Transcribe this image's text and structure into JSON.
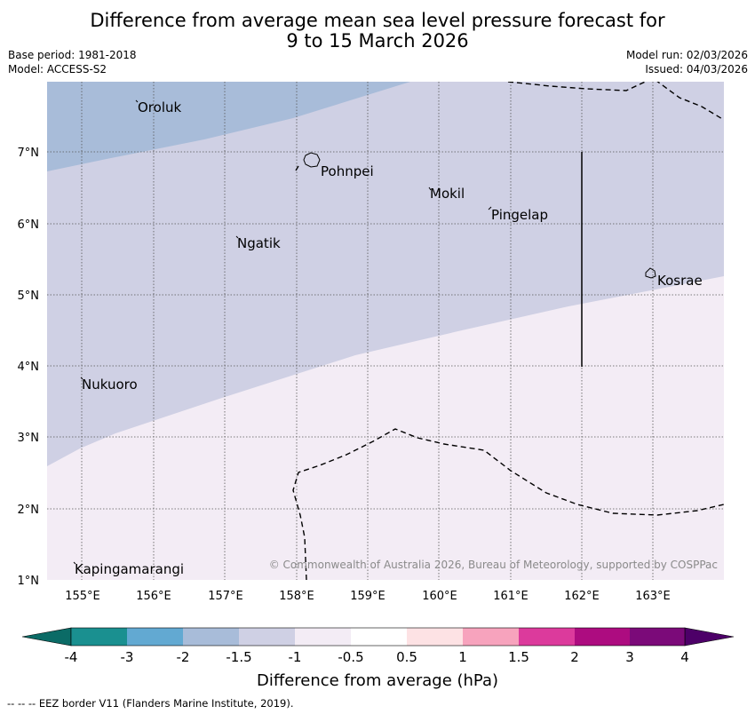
{
  "title": {
    "line1": "Difference from average mean sea level pressure forecast for",
    "line2": "9 to 15 March 2026"
  },
  "meta": {
    "base_period": "Base period: 1981-2018",
    "model": "Model: ACCESS-S2",
    "model_run": "Model run: 02/03/2026",
    "issued": "Issued: 04/03/2026"
  },
  "map": {
    "lon_range": [
      154.5,
      164.0
    ],
    "lat_range": [
      1.0,
      8.0
    ],
    "lat_ticks": [
      "7°N",
      "6°N",
      "5°N",
      "4°N",
      "3°N",
      "2°N",
      "1°N"
    ],
    "lon_ticks": [
      "155°E",
      "156°E",
      "157°E",
      "158°E",
      "159°E",
      "160°E",
      "161°E",
      "162°E",
      "163°E"
    ],
    "places": [
      {
        "name": "Oroluk"
      },
      {
        "name": "Pohnpei"
      },
      {
        "name": "Mokil"
      },
      {
        "name": "Pingelap"
      },
      {
        "name": "Ngatik"
      },
      {
        "name": "Kosrae"
      },
      {
        "name": "Nukuoro"
      },
      {
        "name": "Kapingamarangi"
      }
    ],
    "zones": [
      {
        "range": "-2 to -1.5",
        "color": "#a8bcd9"
      },
      {
        "range": "-1.5 to -1",
        "color": "#cfd0e4"
      },
      {
        "range": "-1 to -0.5",
        "color": "#f3ecf5"
      }
    ],
    "copyright": "© Commonwealth of Australia 2026, Bureau of Meteorology, supported by COSPPac"
  },
  "colorbar": {
    "labels": [
      "-4",
      "-3",
      "-2",
      "-1.5",
      "-1",
      "-0.5",
      "0.5",
      "1",
      "1.5",
      "2",
      "3",
      "4"
    ],
    "colors": [
      "#1a9090",
      "#62a9d2",
      "#a8bcd9",
      "#cfd0e4",
      "#f3ecf5",
      "#ffffff",
      "#fde2e4",
      "#f7a3bd",
      "#dc3a9c",
      "#ad0c80",
      "#7b0a79"
    ],
    "low_color": "#0b6b66",
    "high_color": "#4d0068",
    "label": "Difference from average (hPa)"
  },
  "footnote": "--  --  -- EEZ border V11 (Flanders Marine Institute, 2019)."
}
